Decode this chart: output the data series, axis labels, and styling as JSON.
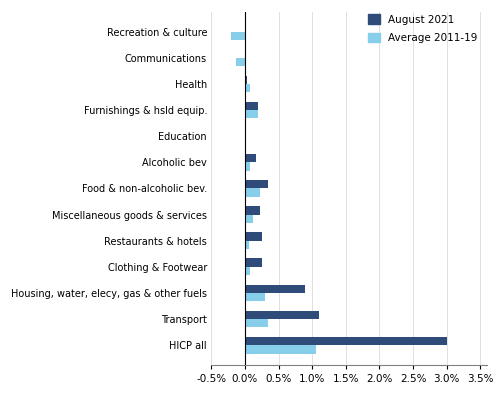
{
  "categories": [
    "HICP all",
    "Transport",
    "Housing, water, elecy, gas & other fuels",
    "Clothing & Footwear",
    "Restaurants & hotels",
    "Miscellaneous goods & services",
    "Food & non-alcoholic bev.",
    "Alcoholic bev",
    "Education",
    "Furnishings & hsld equip.",
    "Health",
    "Communications",
    "Recreation & culture"
  ],
  "aug2021": [
    0.03,
    0.011,
    0.009,
    0.0025,
    0.0025,
    0.0022,
    0.0035,
    0.0017,
    0.0002,
    0.002,
    0.0003,
    0.0002,
    0.0002
  ],
  "avg2011_19": [
    0.0105,
    0.0035,
    0.003,
    0.0007,
    0.0006,
    0.0012,
    0.0022,
    0.0007,
    0.0002,
    0.002,
    0.0007,
    -0.0013,
    -0.002
  ],
  "color_aug": "#2E4B7A",
  "color_avg": "#87CEEB",
  "xtick_vals": [
    -0.005,
    0.0,
    0.005,
    0.01,
    0.015,
    0.02,
    0.025,
    0.03,
    0.035
  ],
  "xtick_labels": [
    "-0.5%",
    "0.0%",
    "0.5%",
    "1.0%",
    "1.5%",
    "2.0%",
    "2.5%",
    "3.0%",
    "3.5%"
  ],
  "legend_labels": [
    "August 2021",
    "Average 2011-19"
  ],
  "bar_height": 0.32,
  "xlim_left": -0.005,
  "xlim_right": 0.036
}
